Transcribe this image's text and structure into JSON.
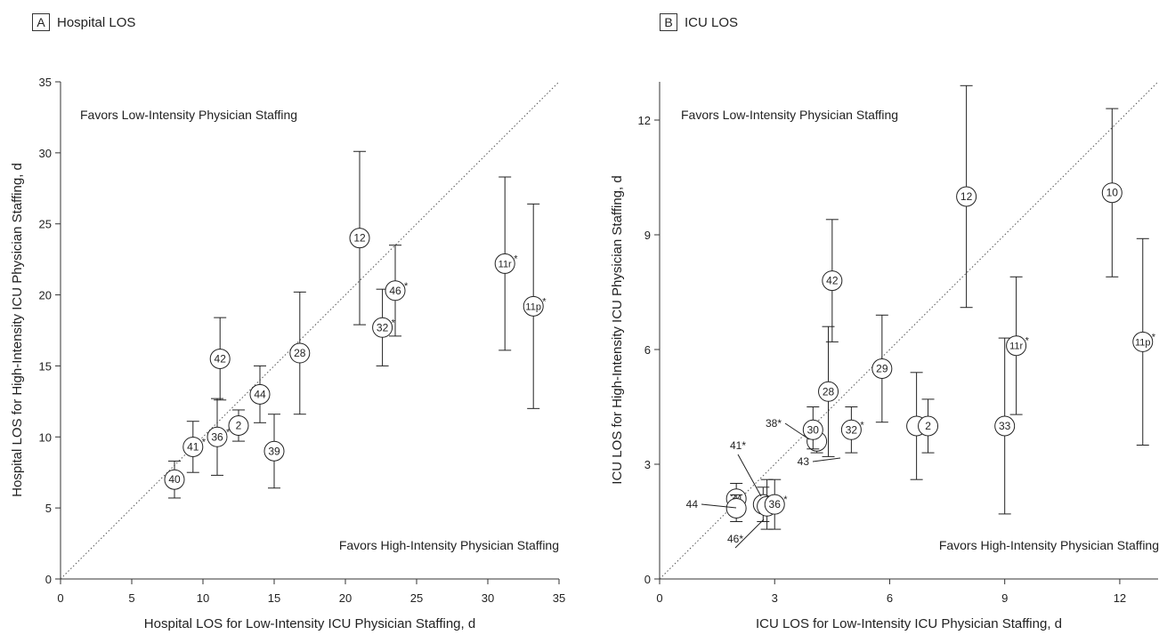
{
  "chart_data": [
    {
      "type": "scatter",
      "panel_letter": "A",
      "title": "Hospital LOS",
      "xlabel": "Hospital LOS for Low-Intensity ICU Physician Staffing, d",
      "ylabel": "Hospital LOS for High-Intensity ICU Physician Staffing, d",
      "xlim": [
        0,
        35
      ],
      "ylim": [
        0,
        35
      ],
      "xticks": [
        0,
        5,
        10,
        15,
        20,
        25,
        30,
        35
      ],
      "yticks": [
        0,
        5,
        10,
        15,
        20,
        25,
        30,
        35
      ],
      "annotation_top": "Favors Low-Intensity Physician Staffing",
      "annotation_bottom": "Favors High-Intensity Physician Staffing",
      "points": [
        {
          "label": "40",
          "x": 8.0,
          "y": 7.0,
          "lo": 5.7,
          "hi": 8.3
        },
        {
          "label": "41*",
          "x": 9.3,
          "y": 9.3,
          "lo": 7.5,
          "hi": 11.1
        },
        {
          "label": "36*",
          "x": 11.0,
          "y": 10.0,
          "lo": 7.3,
          "hi": 12.7
        },
        {
          "label": "42",
          "x": 11.2,
          "y": 15.5,
          "lo": 12.6,
          "hi": 18.4
        },
        {
          "label": "2",
          "x": 12.5,
          "y": 10.8,
          "lo": 9.7,
          "hi": 11.9
        },
        {
          "label": "44",
          "x": 14.0,
          "y": 13.0,
          "lo": 11.0,
          "hi": 15.0
        },
        {
          "label": "39",
          "x": 15.0,
          "y": 9.0,
          "lo": 6.4,
          "hi": 11.6
        },
        {
          "label": "28",
          "x": 16.8,
          "y": 15.9,
          "lo": 11.6,
          "hi": 20.2
        },
        {
          "label": "12",
          "x": 21.0,
          "y": 24.0,
          "lo": 17.9,
          "hi": 30.1
        },
        {
          "label": "32*",
          "x": 22.6,
          "y": 17.7,
          "lo": 15.0,
          "hi": 20.4
        },
        {
          "label": "46*",
          "x": 23.5,
          "y": 20.3,
          "lo": 17.1,
          "hi": 23.5
        },
        {
          "label": "11r*",
          "x": 31.2,
          "y": 22.2,
          "lo": 16.1,
          "hi": 28.3
        },
        {
          "label": "11p*",
          "x": 33.2,
          "y": 19.2,
          "lo": 12.0,
          "hi": 26.4
        }
      ]
    },
    {
      "type": "scatter",
      "panel_letter": "B",
      "title": "ICU LOS",
      "xlabel": "ICU LOS for Low-Intensity ICU Physician Staffing, d",
      "ylabel": "ICU LOS for High-Intensity ICU Physician Staffing, d",
      "xlim": [
        0,
        13
      ],
      "ylim": [
        0,
        13
      ],
      "xticks": [
        0,
        3,
        6,
        9,
        12
      ],
      "yticks": [
        0,
        3,
        6,
        9,
        12
      ],
      "annotation_top": "Favors Low-Intensity Physician Staffing",
      "annotation_bottom": "Favors High-Intensity Physician Staffing",
      "points": [
        {
          "label": "34",
          "x": 2.0,
          "y": 2.1,
          "lo": 1.7,
          "hi": 2.5
        },
        {
          "label": "44",
          "x": 2.0,
          "y": 1.85,
          "lo": 1.5,
          "hi": 2.2
        },
        {
          "label": "41*",
          "x": 2.7,
          "y": 1.95,
          "lo": 1.5,
          "hi": 2.4
        },
        {
          "label": "46*",
          "x": 2.8,
          "y": 1.9,
          "lo": 1.3,
          "hi": 2.6
        },
        {
          "label": "36*",
          "x": 3.0,
          "y": 1.95,
          "lo": 1.3,
          "hi": 2.6
        },
        {
          "label": "38*",
          "x": 4.1,
          "y": 3.6,
          "lo": 3.3,
          "hi": 3.9
        },
        {
          "label": "30",
          "x": 4.0,
          "y": 3.9,
          "lo": 3.4,
          "hi": 4.5
        },
        {
          "label": "28",
          "x": 4.4,
          "y": 4.9,
          "lo": 3.2,
          "hi": 6.6
        },
        {
          "label": "42",
          "x": 4.5,
          "y": 7.8,
          "lo": 6.2,
          "hi": 9.4
        },
        {
          "label": "32*",
          "x": 5.0,
          "y": 3.9,
          "lo": 3.3,
          "hi": 4.5
        },
        {
          "label": "29",
          "x": 5.8,
          "y": 5.5,
          "lo": 4.1,
          "hi": 6.9
        },
        {
          "label": "43",
          "x": 6.7,
          "y": 4.0,
          "lo": 2.6,
          "hi": 5.4
        },
        {
          "label": "2",
          "x": 7.0,
          "y": 4.0,
          "lo": 3.3,
          "hi": 4.7
        },
        {
          "label": "12",
          "x": 8.0,
          "y": 10.0,
          "lo": 7.1,
          "hi": 12.9
        },
        {
          "label": "33",
          "x": 9.0,
          "y": 4.0,
          "lo": 1.7,
          "hi": 6.3
        },
        {
          "label": "11r*",
          "x": 9.3,
          "y": 6.1,
          "lo": 4.3,
          "hi": 7.9
        },
        {
          "label": "10",
          "x": 11.8,
          "y": 10.1,
          "lo": 7.9,
          "hi": 12.3
        },
        {
          "label": "11p*",
          "x": 12.6,
          "y": 6.2,
          "lo": 3.5,
          "hi": 8.9
        }
      ]
    }
  ]
}
